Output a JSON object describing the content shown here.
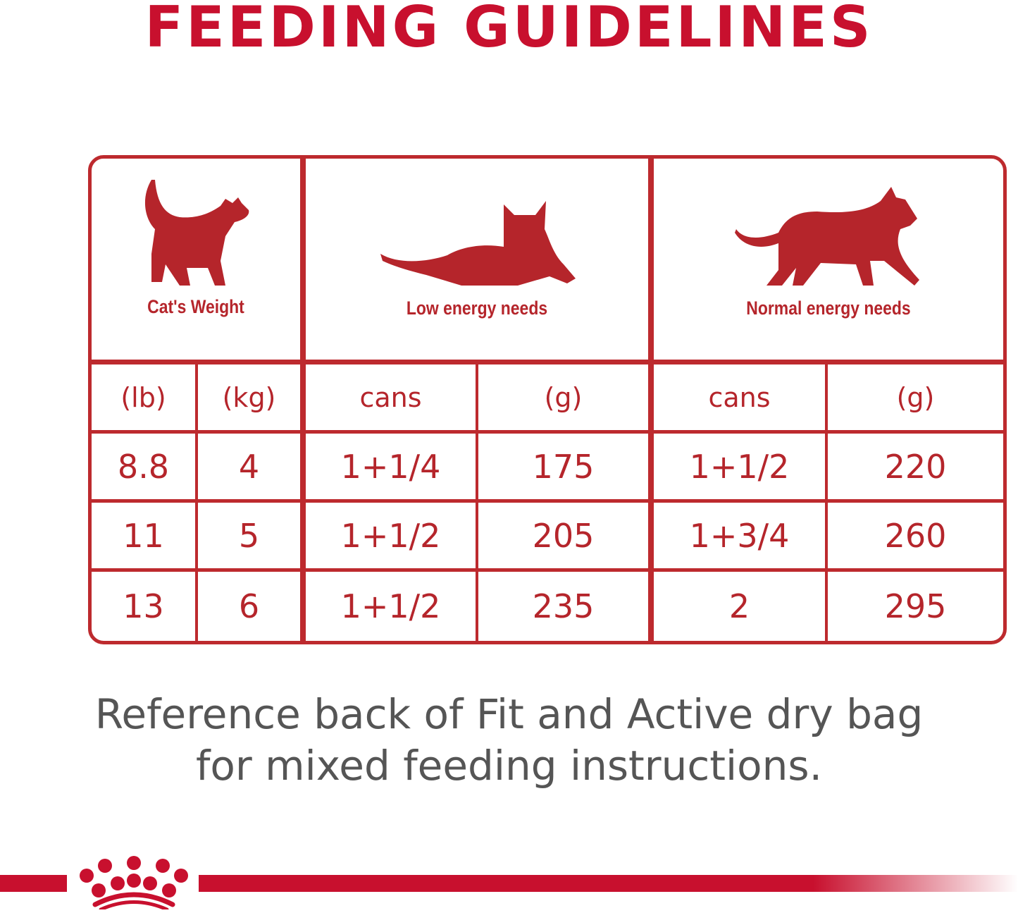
{
  "title": "FEEDING GUIDELINES",
  "table": {
    "groups": [
      "Cat's Weight",
      "Low energy needs",
      "Normal energy needs"
    ],
    "units": [
      "(lb)",
      "(kg)",
      "cans",
      "(g)",
      "cans",
      "(g)"
    ],
    "rows": [
      [
        "8.8",
        "4",
        "1+1/4",
        "175",
        "1+1/2",
        "220"
      ],
      [
        "11",
        "5",
        "1+1/2",
        "205",
        "1+3/4",
        "260"
      ],
      [
        "13",
        "6",
        "1+1/2",
        "235",
        "2",
        "295"
      ]
    ]
  },
  "note": {
    "line1": "Reference back of Fit and Active dry bag",
    "line2": "for mixed feeding instructions."
  },
  "colors": {
    "brand_red": "#c8102e",
    "table_red": "#bd2a2e",
    "note_gray": "#555555"
  },
  "logo": {
    "name": "crown-logo"
  }
}
